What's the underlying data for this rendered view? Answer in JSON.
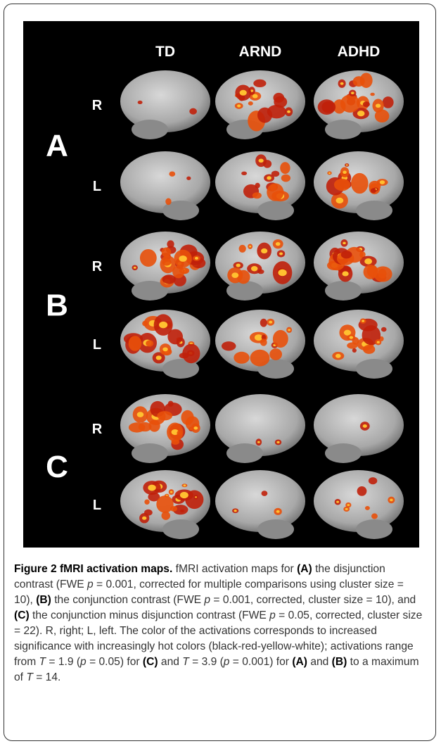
{
  "figure": {
    "columns": [
      "TD",
      "ARND",
      "ADHD"
    ],
    "sections": [
      {
        "label": "A",
        "rows": [
          "R",
          "L"
        ]
      },
      {
        "label": "B",
        "rows": [
          "R",
          "L"
        ]
      },
      {
        "label": "C",
        "rows": [
          "R",
          "L"
        ]
      }
    ]
  },
  "caption": {
    "parts": [
      "Figure 2 fMRI activation maps.",
      " fMRI activation maps for ",
      "(A)",
      " the disjunction contrast (FWE ",
      "p",
      " = 0.001, corrected for multiple comparisons using cluster size = 10), ",
      "(B)",
      " the conjunction contrast (FWE ",
      "p",
      " = 0.001, corrected, cluster size = 10), and ",
      "(C)",
      " the conjunction minus disjunction contrast (FWE ",
      "p",
      " = 0.05, corrected, cluster size = 22). R, right; L, left. The color of the activations corresponds to increased significance with increasingly hot colors (black-red-yellow-white); activations range from ",
      "T",
      " = 1.9 (",
      "p",
      " = 0.05) for ",
      "(C)",
      " and ",
      "T",
      " = 3.9 (",
      "p",
      " = 0.001) for ",
      "(A)",
      " and ",
      "(B)",
      " to a maximum of ",
      "T",
      " = 14."
    ]
  }
}
